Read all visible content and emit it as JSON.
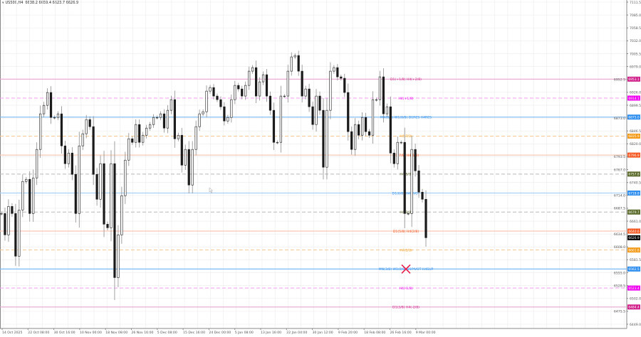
{
  "header": {
    "symbol": "US500,H4",
    "ohlc": "6638.2 6659.4 6623.7 6626.9"
  },
  "colors": {
    "background": "#ffffff",
    "grid": "#ececec",
    "candle": "#1a1a1a",
    "wick": "#8c8c8c",
    "axis": "#888888",
    "marker": "#e8204a"
  },
  "chart_data": {
    "type": "candlestick",
    "timeframe": "H4",
    "symbol": "US500",
    "last_price": 6626.9,
    "ylim": [
      6449.0,
      7111.5
    ],
    "y_ticks": [
      7111.5,
      7085.0,
      7058.5,
      7032.0,
      7005.5,
      6979.0,
      6952.5,
      6926.0,
      6899.5,
      6873.0,
      6846.5,
      6820.0,
      6793.5,
      6767.0,
      6740.5,
      6714.0,
      6687.5,
      6661.0,
      6634.5,
      6608.0,
      6581.5,
      6555.0,
      6528.5,
      6502.0,
      6475.5,
      6449.0
    ],
    "x_ticks": [
      "14 Oct 2025",
      "22 Oct 08:00",
      "30 Oct 16:00",
      "10 Nov 00:00",
      "18 Nov 08:00",
      "26 Nov 16:00",
      "5 Dec 08:00",
      "15 Dec 16:00",
      "24 Dec 00:00",
      "5 Jan 08:00",
      "13 Jan 16:00",
      "22 Jan 04:00",
      "30 Jan 12:00",
      "9 Feb 20:00",
      "18 Feb 08:00",
      "26 Feb 16:00",
      "9 Mar 00:00"
    ],
    "closes": [
      6676.7,
      6632.8,
      6691.3,
      6676.7,
      6588.9,
      6684.0,
      6742.6,
      6747.0,
      6676.7,
      6749.9,
      6808.5,
      6881.7,
      6899.2,
      6925.6,
      6874.3,
      6874.3,
      6881.7,
      6815.8,
      6779.2,
      6801.1,
      6757.2,
      6676.7,
      6815.8,
      6840.7,
      6869.9,
      6855.3,
      6757.2,
      6706.0,
      6779.2,
      6654.7,
      6647.4,
      6779.2,
      6544.9,
      6632.8,
      6713.3,
      6786.5,
      6830.4,
      6823.1,
      6859.7,
      6823.1,
      6837.7,
      6852.4,
      6859.7,
      6874.3,
      6874.3,
      6881.7,
      6852.4,
      6889.0,
      6910.9,
      6830.4,
      6837.7,
      6776.2,
      6808.5,
      6735.3,
      6808.5,
      6855.3,
      6881.7,
      6886.0,
      6928.5,
      6935.8,
      6918.3,
      6910.9,
      6896.3,
      6867.0,
      6874.3,
      6910.9,
      6940.2,
      6932.9,
      6918.3,
      6940.2,
      6969.5,
      6976.8,
      6918.3,
      6947.5,
      6962.2,
      6918.3,
      6889.0,
      6823.1,
      6823.1,
      6918.3,
      6918.3,
      6969.5,
      6998.8,
      7001.7,
      6969.5,
      6918.3,
      6932.9,
      6896.3,
      6859.7,
      6918.3,
      6889.0,
      6771.9,
      6889.0,
      6969.5,
      6976.8,
      6957.8,
      6954.9,
      6925.6,
      6845.1,
      6808.5,
      6859.7,
      6837.7,
      6874.3,
      6845.1,
      6837.7,
      6910.9,
      6910.9,
      6957.8,
      6881.7,
      6896.3,
      6801.1,
      6779.2,
      6823.1,
      6823.1,
      6676.7,
      6676.7,
      6808.5,
      6764.5,
      6720.6,
      6706.0,
      6626.9
    ],
    "levels": [
      {
        "price": 6953.1,
        "label_value": "6953.1",
        "text": "D1(+1/8) H4(+2/8)",
        "color": "#d0208a",
        "line": "#e9a6cf",
        "style": "solid"
      },
      {
        "price": 6914.1,
        "label_value": "6914.1",
        "text": "H4(+1/8)",
        "color": "#f000f0",
        "line": "#f39cf3",
        "style": "dashed"
      },
      {
        "price": 6875.0,
        "label_value": "6875.0",
        "text": "MN(8/8) W1(8/8) D1RES H4RES",
        "color": "#2f8ff0",
        "line": "#7cbcf6",
        "style": "solid"
      },
      {
        "price": 6835.9,
        "label_value": "6835.9",
        "text": "H4(7/8)",
        "color": "#f59a18",
        "line": "#f5c890",
        "style": "dashed"
      },
      {
        "price": 6796.9,
        "label_value": "6796.9",
        "text": "D1(7/8) H4(6/8)",
        "color": "#f5561f",
        "line": "#f9c8b4",
        "style": "solid"
      },
      {
        "price": 6757.8,
        "label_value": "6757.8",
        "text": "H4(5/8)",
        "color": "#5a6b2a",
        "line": "#b8b8b0",
        "style": "dashed"
      },
      {
        "price": 6718.8,
        "label_value": "6718.8",
        "text": "D1(6/8) H4PIVOT",
        "color": "#2f8ff0",
        "line": "#a6d0f6",
        "style": "solid"
      },
      {
        "price": 6679.7,
        "label_value": "6679.7",
        "text": "H4(3/8)",
        "color": "#5a6b2a",
        "line": "#b8b8b0",
        "style": "dashed"
      },
      {
        "price": 6640.6,
        "label_value": "6640.6",
        "text": "D1(5/8) H4(2/8)",
        "color": "#f5561f",
        "line": "#f9c8b4",
        "style": "solid"
      },
      {
        "price": 6601.6,
        "label_value": "6601.6",
        "text": "H4(1/8)",
        "color": "#f59a18",
        "line": "#f5c890",
        "style": "dashed"
      },
      {
        "price": 6562.5,
        "label_value": "6562.5",
        "text": "MN(3/8) W1(0/8) D1PIVOT H4SUP",
        "color": "#2f8ff0",
        "line": "#7cbcf6",
        "style": "solid"
      },
      {
        "price": 6523.4,
        "label_value": "6523.4",
        "text": "H4(-1/8)",
        "color": "#f000f0",
        "line": "#f39cf3",
        "style": "dashed"
      },
      {
        "price": 6484.4,
        "label_value": "6484.4",
        "text": "D1(3/8) H4(-2/8)",
        "color": "#d0208a",
        "line": "#e9a6cf",
        "style": "solid"
      }
    ],
    "current_price_label": "6626.9",
    "marker": {
      "type": "cross",
      "price": 6562.5,
      "date": "9 Mar 00:00"
    }
  }
}
